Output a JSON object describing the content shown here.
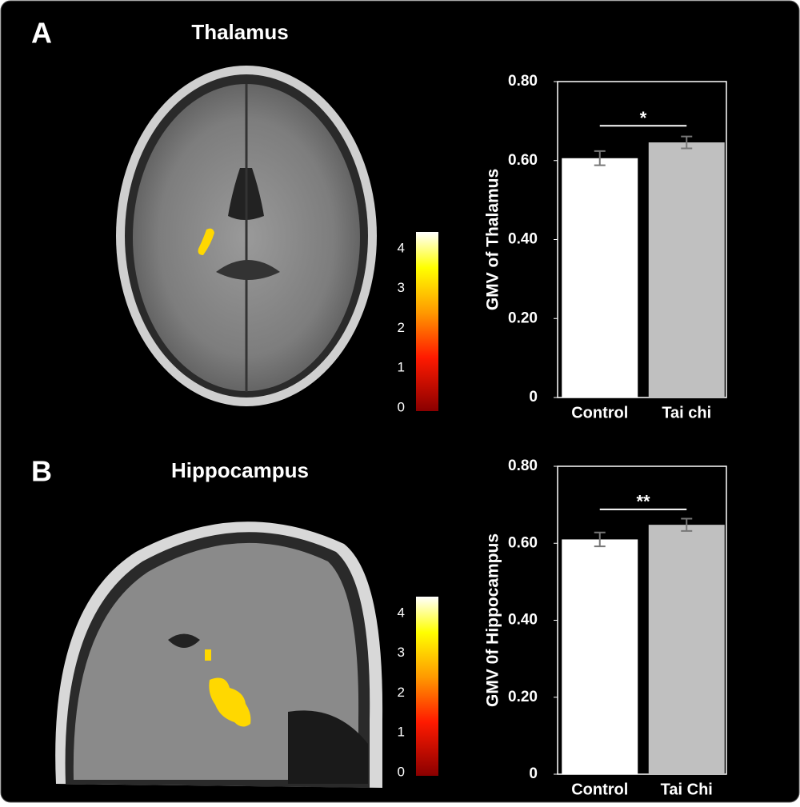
{
  "panels": [
    {
      "label": "A",
      "title": "Thalamus",
      "colorbar": {
        "clim": [
          0,
          4.5
        ],
        "ticks": [
          0,
          1,
          2,
          3,
          4
        ]
      }
    },
    {
      "label": "B",
      "title": "Hippocampus",
      "colorbar": {
        "clim": [
          0,
          4.5
        ],
        "ticks": [
          0,
          1,
          2,
          3,
          4
        ]
      }
    }
  ],
  "chart_data": [
    {
      "type": "bar",
      "ylabel": "GMV of Thalamus",
      "categories": [
        "Control",
        "Tai chi"
      ],
      "values": [
        0.606,
        0.646
      ],
      "errors": [
        0.018,
        0.015
      ],
      "colors": [
        "#ffffff",
        "#c0c0c0"
      ],
      "ylim": [
        0,
        0.8
      ],
      "yticks": [
        0,
        {
          "value": 0.2,
          "label": "0.20"
        },
        {
          "value": 0.4,
          "label": "0.40"
        },
        {
          "value": 0.6,
          "label": "0.60"
        },
        {
          "value": 0.8,
          "label": "0.80"
        }
      ],
      "significance": "*"
    },
    {
      "type": "bar",
      "ylabel": "GMV 0f Hippocampus",
      "categories": [
        "Control",
        "Tai Chi"
      ],
      "values": [
        0.61,
        0.648
      ],
      "errors": [
        0.018,
        0.016
      ],
      "colors": [
        "#ffffff",
        "#c0c0c0"
      ],
      "ylim": [
        0,
        0.8
      ],
      "yticks": [
        0,
        {
          "value": 0.2,
          "label": "0.20"
        },
        {
          "value": 0.4,
          "label": "0.40"
        },
        {
          "value": 0.6,
          "label": "0.60"
        },
        {
          "value": 0.8,
          "label": "0.80"
        }
      ],
      "significance": "**"
    }
  ]
}
